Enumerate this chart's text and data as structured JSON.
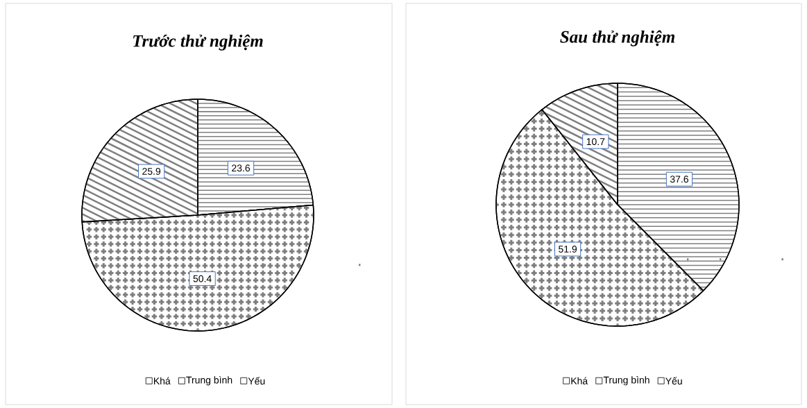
{
  "chart_data": [
    {
      "type": "pie",
      "title": "Trước thử nghiệm",
      "categories": [
        "Khá",
        "Trung bình",
        "Yếu"
      ],
      "values": [
        23.6,
        50.4,
        25.9
      ],
      "colors": [
        "#ffffff",
        "#ffffff",
        "#ffffff"
      ],
      "data_labels": true,
      "legend": "bottom"
    },
    {
      "type": "pie",
      "title": "Sau thử nghiệm",
      "categories": [
        "Khá",
        "Trung bình",
        "Yếu"
      ],
      "values": [
        37.6,
        51.9,
        10.7
      ],
      "colors": [
        "#ffffff",
        "#ffffff",
        "#ffffff"
      ],
      "data_labels": true,
      "legend": "bottom"
    }
  ]
}
